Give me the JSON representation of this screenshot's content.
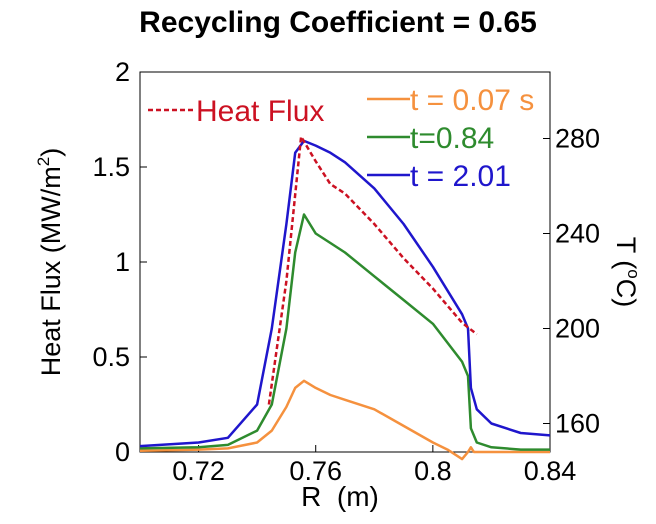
{
  "chart_data": {
    "type": "line",
    "title": "Recycling Coefficient = 0.65",
    "xlabel": "R  (m)",
    "ylabel": "Heat Flux (MW/m",
    "ylabel_sup": "2",
    "ylabel_close": ")",
    "y2label": "T (",
    "y2label_sup": "o",
    "y2label_close": "C)",
    "xlim": [
      0.7,
      0.84
    ],
    "ylim": [
      0,
      2
    ],
    "y2lim": [
      148,
      308
    ],
    "xticks": [
      "0.72",
      "0.76",
      "0.8",
      "0.84"
    ],
    "xtick_values": [
      0.72,
      0.76,
      0.8,
      0.84
    ],
    "yticks": [
      "0",
      "0.5",
      "1",
      "1.5",
      "2"
    ],
    "ytick_values": [
      0,
      0.5,
      1,
      1.5,
      2
    ],
    "y2ticks": [
      "160",
      "200",
      "240",
      "280"
    ],
    "y2tick_values": [
      160,
      200,
      240,
      280
    ],
    "grid": false,
    "legend_position": "top-right",
    "series": [
      {
        "name": "Heat Flux",
        "axis": "left",
        "style": "dashed",
        "color": "#cc1122",
        "x": [
          0.744,
          0.75,
          0.755,
          0.76,
          0.765,
          0.77,
          0.78,
          0.79,
          0.8,
          0.81,
          0.815
        ],
        "y": [
          0.25,
          0.9,
          1.66,
          1.53,
          1.41,
          1.36,
          1.2,
          1.02,
          0.86,
          0.68,
          0.62
        ]
      },
      {
        "name": "t = 0.07 s",
        "axis": "right",
        "style": "solid",
        "color": "#f5913e",
        "x": [
          0.7,
          0.72,
          0.73,
          0.74,
          0.745,
          0.75,
          0.753,
          0.756,
          0.76,
          0.765,
          0.77,
          0.78,
          0.79,
          0.8,
          0.805,
          0.81,
          0.812,
          0.813,
          0.814,
          0.82,
          0.84
        ],
        "y": [
          148.5,
          149,
          149.5,
          152,
          157,
          167,
          175,
          178,
          175,
          172,
          170,
          166,
          159,
          152,
          149,
          145,
          148,
          150,
          148,
          148,
          148
        ]
      },
      {
        "name": "t=0.84",
        "axis": "right",
        "style": "solid",
        "color": "#2e8b2e",
        "x": [
          0.7,
          0.72,
          0.73,
          0.74,
          0.745,
          0.75,
          0.753,
          0.756,
          0.76,
          0.765,
          0.77,
          0.78,
          0.79,
          0.8,
          0.81,
          0.812,
          0.813,
          0.815,
          0.82,
          0.83,
          0.84
        ],
        "y": [
          149.5,
          150,
          151,
          157,
          168,
          200,
          232,
          248,
          240,
          236,
          232,
          222,
          212,
          202,
          186,
          180,
          158,
          152,
          150,
          149,
          149
        ]
      },
      {
        "name": "t = 2.01",
        "axis": "right",
        "style": "solid",
        "color": "#1f16cc",
        "x": [
          0.7,
          0.72,
          0.73,
          0.74,
          0.745,
          0.75,
          0.753,
          0.756,
          0.76,
          0.765,
          0.77,
          0.78,
          0.79,
          0.8,
          0.81,
          0.812,
          0.813,
          0.815,
          0.82,
          0.83,
          0.84
        ],
        "y": [
          150.5,
          152,
          154,
          168,
          200,
          244,
          274,
          279,
          277,
          274,
          270,
          259,
          244,
          226,
          206,
          200,
          175,
          166,
          160,
          156,
          155
        ]
      }
    ]
  }
}
